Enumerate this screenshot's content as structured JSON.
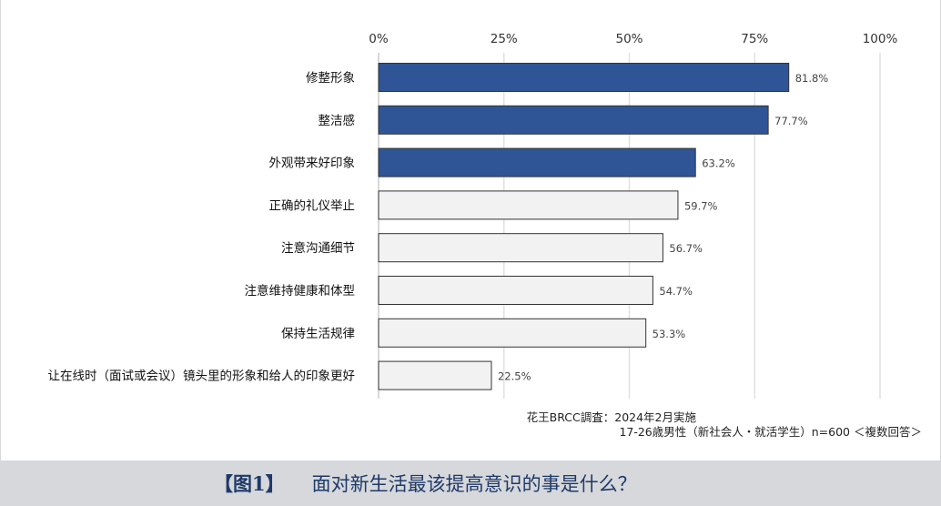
{
  "chart_data": {
    "type": "bar",
    "orientation": "horizontal",
    "categories": [
      "修整形象",
      "整洁感",
      "外观带来好印象",
      "正确的礼仪举止",
      "注意沟通细节",
      "注意维持健康和体型",
      "保持生活规律",
      "让在线时（面试或会议）镜头里的形象和给人的印象更好"
    ],
    "values": [
      81.8,
      77.7,
      63.2,
      59.7,
      56.7,
      54.7,
      53.3,
      22.5
    ],
    "value_labels": [
      "81.8%",
      "77.7%",
      "63.2%",
      "59.7%",
      "56.7%",
      "54.7%",
      "53.3%",
      "22.5%"
    ],
    "highlighted": [
      true,
      true,
      true,
      false,
      false,
      false,
      false,
      false
    ],
    "x_ticks": [
      "0%",
      "25%",
      "50%",
      "75%",
      "100%"
    ],
    "xlim": [
      0,
      100
    ],
    "grid": true,
    "colors": {
      "highlight_fill": "#2f5597",
      "normal_fill": "#f2f2f2",
      "bar_stroke": "#333333",
      "grid": "#e0e0e0"
    }
  },
  "notes": {
    "line1": "花王BRCC調査：2024年2月実施",
    "line2": "17-26歳男性（新社会人・就活学生）n=600 ＜複数回答＞"
  },
  "caption": {
    "label": "【图1】",
    "text": "面对新生活最该提高意识的事是什么？"
  }
}
